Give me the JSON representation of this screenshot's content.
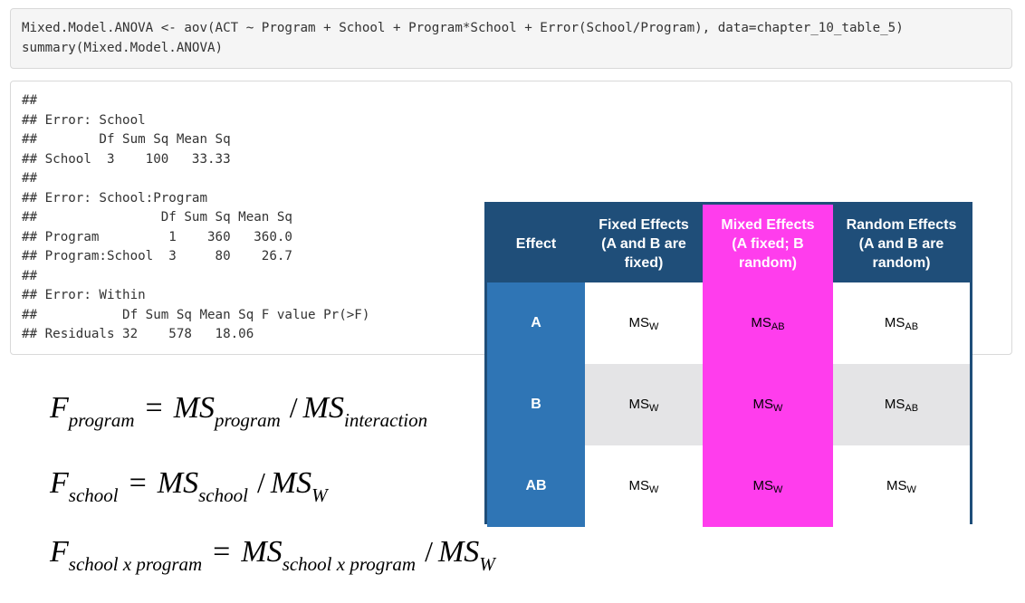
{
  "code_input": {
    "lines": [
      "Mixed.Model.ANOVA <- aov(ACT ~ Program + School + Program*School + Error(School/Program), data=chapter_10_table_5)",
      "summary(Mixed.Model.ANOVA)"
    ]
  },
  "code_output": {
    "lines": [
      "##",
      "## Error: School",
      "##        Df Sum Sq Mean Sq",
      "## School  3    100   33.33",
      "##",
      "## Error: School:Program",
      "##                Df Sum Sq Mean Sq",
      "## Program         1    360   360.0",
      "## Program:School  3     80    26.7",
      "##",
      "## Error: Within",
      "##           Df Sum Sq Mean Sq F value Pr(>F)",
      "## Residuals 32    578   18.06"
    ]
  },
  "formulas": {
    "program": {
      "lhs": "F",
      "lhs_sub": "program",
      "eq": "=",
      "ms1": "MS",
      "ms1_sub": "program",
      "slash": "/",
      "ms2": "MS",
      "ms2_sub": "interaction"
    },
    "school": {
      "lhs": "F",
      "lhs_sub": "school",
      "eq": "=",
      "ms1": "MS",
      "ms1_sub": "school",
      "slash": "/",
      "ms2": "MS",
      "ms2_sub": "W"
    },
    "interaction": {
      "lhs": "F",
      "lhs_sub": "school x program",
      "eq": "=",
      "ms1": "MS",
      "ms1_sub": "school x program",
      "slash": "/",
      "ms2": "MS",
      "ms2_sub": "W"
    }
  },
  "effects_table": {
    "headers": {
      "effect": "Effect",
      "fixed": [
        "Fixed Effects",
        "(A and B are",
        "fixed)"
      ],
      "mixed": [
        "Mixed Effects",
        "(A fixed; B",
        "random)"
      ],
      "random": [
        "Random Effects",
        "(A and B are",
        "random)"
      ]
    },
    "rows": [
      {
        "label": "A",
        "fixed": {
          "base": "MS",
          "sub": "W"
        },
        "mixed": {
          "base": "MS",
          "sub": "AB"
        },
        "random": {
          "base": "MS",
          "sub": "AB"
        }
      },
      {
        "label": "B",
        "fixed": {
          "base": "MS",
          "sub": "W"
        },
        "mixed": {
          "base": "MS",
          "sub": "W"
        },
        "random": {
          "base": "MS",
          "sub": "AB"
        }
      },
      {
        "label": "AB",
        "fixed": {
          "base": "MS",
          "sub": "W"
        },
        "mixed": {
          "base": "MS",
          "sub": "W"
        },
        "random": {
          "base": "MS",
          "sub": "W"
        }
      }
    ],
    "colors": {
      "header_blue": "#1f4e79",
      "row_label_blue": "#2f75b5",
      "mixed_magenta": "#ff3ded",
      "stripe_gray": "#e4e4e6"
    }
  }
}
